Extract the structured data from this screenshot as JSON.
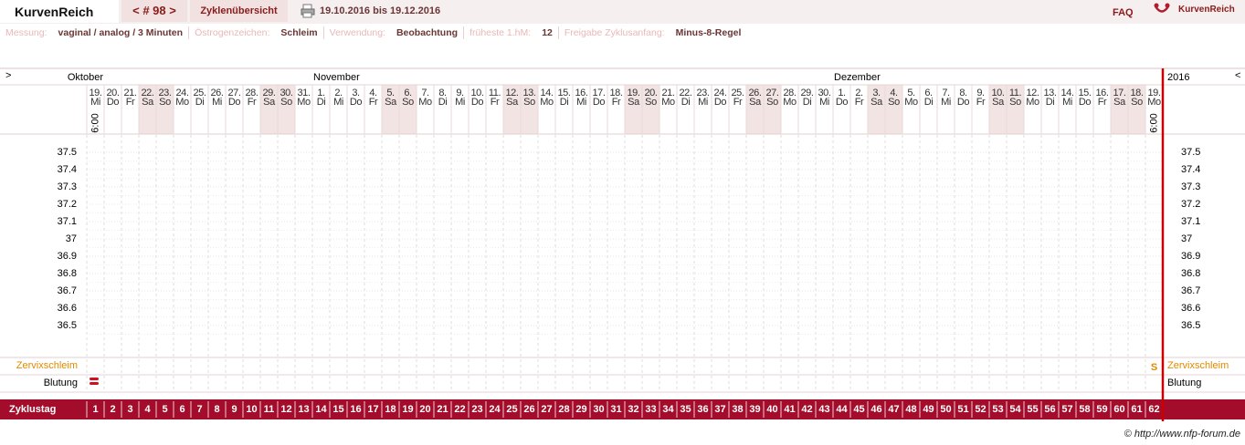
{
  "header": {
    "brand": "KurvenReich",
    "cycle_nav": "< # 98 >",
    "overview": "Zyklenübersicht",
    "date_range": "19.10.2016 bis 19.12.2016",
    "faq": "FAQ",
    "logo_text": "KurvenReich"
  },
  "settings": [
    {
      "label": "Messung:",
      "value": "vaginal / analog / 3 Minuten"
    },
    {
      "label": "Östrogenzeichen:",
      "value": "Schleim"
    },
    {
      "label": "Verwendung:",
      "value": "Beobachtung"
    },
    {
      "label": "früheste 1.hM:",
      "value": "12"
    },
    {
      "label": "Freigabe Zyklusanfang:",
      "value": "Minus-8-Regel"
    }
  ],
  "chart": {
    "nav_prev": ">",
    "nav_next": "<",
    "months": [
      "Oktober",
      "November",
      "Dezember"
    ],
    "year": "2016",
    "days": [
      {
        "date": "19.",
        "weekday": "Mi",
        "weekend": false
      },
      {
        "date": "20.",
        "weekday": "Do",
        "weekend": false
      },
      {
        "date": "21.",
        "weekday": "Fr",
        "weekend": false
      },
      {
        "date": "22.",
        "weekday": "Sa",
        "weekend": true
      },
      {
        "date": "23.",
        "weekday": "So",
        "weekend": true
      },
      {
        "date": "24.",
        "weekday": "Mo",
        "weekend": false
      },
      {
        "date": "25.",
        "weekday": "Di",
        "weekend": false
      },
      {
        "date": "26.",
        "weekday": "Mi",
        "weekend": false
      },
      {
        "date": "27.",
        "weekday": "Do",
        "weekend": false
      },
      {
        "date": "28.",
        "weekday": "Fr",
        "weekend": false
      },
      {
        "date": "29.",
        "weekday": "Sa",
        "weekend": true
      },
      {
        "date": "30.",
        "weekday": "So",
        "weekend": true
      },
      {
        "date": "31.",
        "weekday": "Mo",
        "weekend": false
      },
      {
        "date": "1.",
        "weekday": "Di",
        "weekend": false
      },
      {
        "date": "2.",
        "weekday": "Mi",
        "weekend": false
      },
      {
        "date": "3.",
        "weekday": "Do",
        "weekend": false
      },
      {
        "date": "4.",
        "weekday": "Fr",
        "weekend": false
      },
      {
        "date": "5.",
        "weekday": "Sa",
        "weekend": true
      },
      {
        "date": "6.",
        "weekday": "So",
        "weekend": true
      },
      {
        "date": "7.",
        "weekday": "Mo",
        "weekend": false
      },
      {
        "date": "8.",
        "weekday": "Di",
        "weekend": false
      },
      {
        "date": "9.",
        "weekday": "Mi",
        "weekend": false
      },
      {
        "date": "10.",
        "weekday": "Do",
        "weekend": false
      },
      {
        "date": "11.",
        "weekday": "Fr",
        "weekend": false
      },
      {
        "date": "12.",
        "weekday": "Sa",
        "weekend": true
      },
      {
        "date": "13.",
        "weekday": "So",
        "weekend": true
      },
      {
        "date": "14.",
        "weekday": "Mo",
        "weekend": false
      },
      {
        "date": "15.",
        "weekday": "Di",
        "weekend": false
      },
      {
        "date": "16.",
        "weekday": "Mi",
        "weekend": false
      },
      {
        "date": "17.",
        "weekday": "Do",
        "weekend": false
      },
      {
        "date": "18.",
        "weekday": "Fr",
        "weekend": false
      },
      {
        "date": "19.",
        "weekday": "Sa",
        "weekend": true
      },
      {
        "date": "20.",
        "weekday": "So",
        "weekend": true
      },
      {
        "date": "21.",
        "weekday": "Mo",
        "weekend": false
      },
      {
        "date": "22.",
        "weekday": "Di",
        "weekend": false
      },
      {
        "date": "23.",
        "weekday": "Mi",
        "weekend": false
      },
      {
        "date": "24.",
        "weekday": "Do",
        "weekend": false
      },
      {
        "date": "25.",
        "weekday": "Fr",
        "weekend": false
      },
      {
        "date": "26.",
        "weekday": "Sa",
        "weekend": true
      },
      {
        "date": "27.",
        "weekday": "So",
        "weekend": true
      },
      {
        "date": "28.",
        "weekday": "Mo",
        "weekend": false
      },
      {
        "date": "29.",
        "weekday": "Di",
        "weekend": false
      },
      {
        "date": "30.",
        "weekday": "Mi",
        "weekend": false
      },
      {
        "date": "1.",
        "weekday": "Do",
        "weekend": false
      },
      {
        "date": "2.",
        "weekday": "Fr",
        "weekend": false
      },
      {
        "date": "3.",
        "weekday": "Sa",
        "weekend": true
      },
      {
        "date": "4.",
        "weekday": "So",
        "weekend": true
      },
      {
        "date": "5.",
        "weekday": "Mo",
        "weekend": false
      },
      {
        "date": "6.",
        "weekday": "Di",
        "weekend": false
      },
      {
        "date": "7.",
        "weekday": "Mi",
        "weekend": false
      },
      {
        "date": "8.",
        "weekday": "Do",
        "weekend": false
      },
      {
        "date": "9.",
        "weekday": "Fr",
        "weekend": false
      },
      {
        "date": "10.",
        "weekday": "Sa",
        "weekend": true
      },
      {
        "date": "11.",
        "weekday": "So",
        "weekend": true
      },
      {
        "date": "12.",
        "weekday": "Mo",
        "weekend": false
      },
      {
        "date": "13.",
        "weekday": "Di",
        "weekend": false
      },
      {
        "date": "14.",
        "weekday": "Mi",
        "weekend": false
      },
      {
        "date": "15.",
        "weekday": "Do",
        "weekend": false
      },
      {
        "date": "16.",
        "weekday": "Fr",
        "weekend": false
      },
      {
        "date": "17.",
        "weekday": "Sa",
        "weekend": true
      },
      {
        "date": "18.",
        "weekday": "So",
        "weekend": true
      },
      {
        "date": "19.",
        "weekday": "Mo",
        "weekend": false
      }
    ],
    "time_first": "6:00",
    "time_last": "6:00",
    "temperature_labels": [
      37.5,
      37.4,
      37.3,
      37.2,
      37.1,
      37,
      36.9,
      36.8,
      36.7,
      36.6,
      36.5
    ],
    "rows": {
      "cervical_mucus": "Zervixschleim",
      "bleeding": "Blutung"
    },
    "cervical_mucus_entries": [
      null,
      null,
      null,
      null,
      null,
      null,
      null,
      null,
      null,
      null,
      null,
      null,
      null,
      null,
      null,
      null,
      null,
      null,
      null,
      null,
      null,
      null,
      null,
      null,
      null,
      null,
      null,
      null,
      null,
      null,
      null,
      null,
      null,
      null,
      null,
      null,
      null,
      null,
      null,
      null,
      null,
      null,
      null,
      null,
      null,
      null,
      null,
      null,
      null,
      null,
      null,
      null,
      null,
      null,
      null,
      null,
      null,
      null,
      null,
      null,
      null,
      "S"
    ],
    "cycle_day_label": "Zyklustag",
    "cycle_days": [
      1,
      2,
      3,
      4,
      5,
      6,
      7,
      8,
      9,
      10,
      11,
      12,
      13,
      14,
      15,
      16,
      17,
      18,
      19,
      20,
      21,
      22,
      23,
      24,
      25,
      26,
      27,
      28,
      29,
      30,
      31,
      32,
      33,
      34,
      35,
      36,
      37,
      38,
      39,
      40,
      41,
      42,
      43,
      44,
      45,
      46,
      47,
      48,
      49,
      50,
      51,
      52,
      53,
      54,
      55,
      56,
      57,
      58,
      59,
      60,
      61,
      62
    ]
  },
  "footer": "© http://www.nfp-forum.de"
}
